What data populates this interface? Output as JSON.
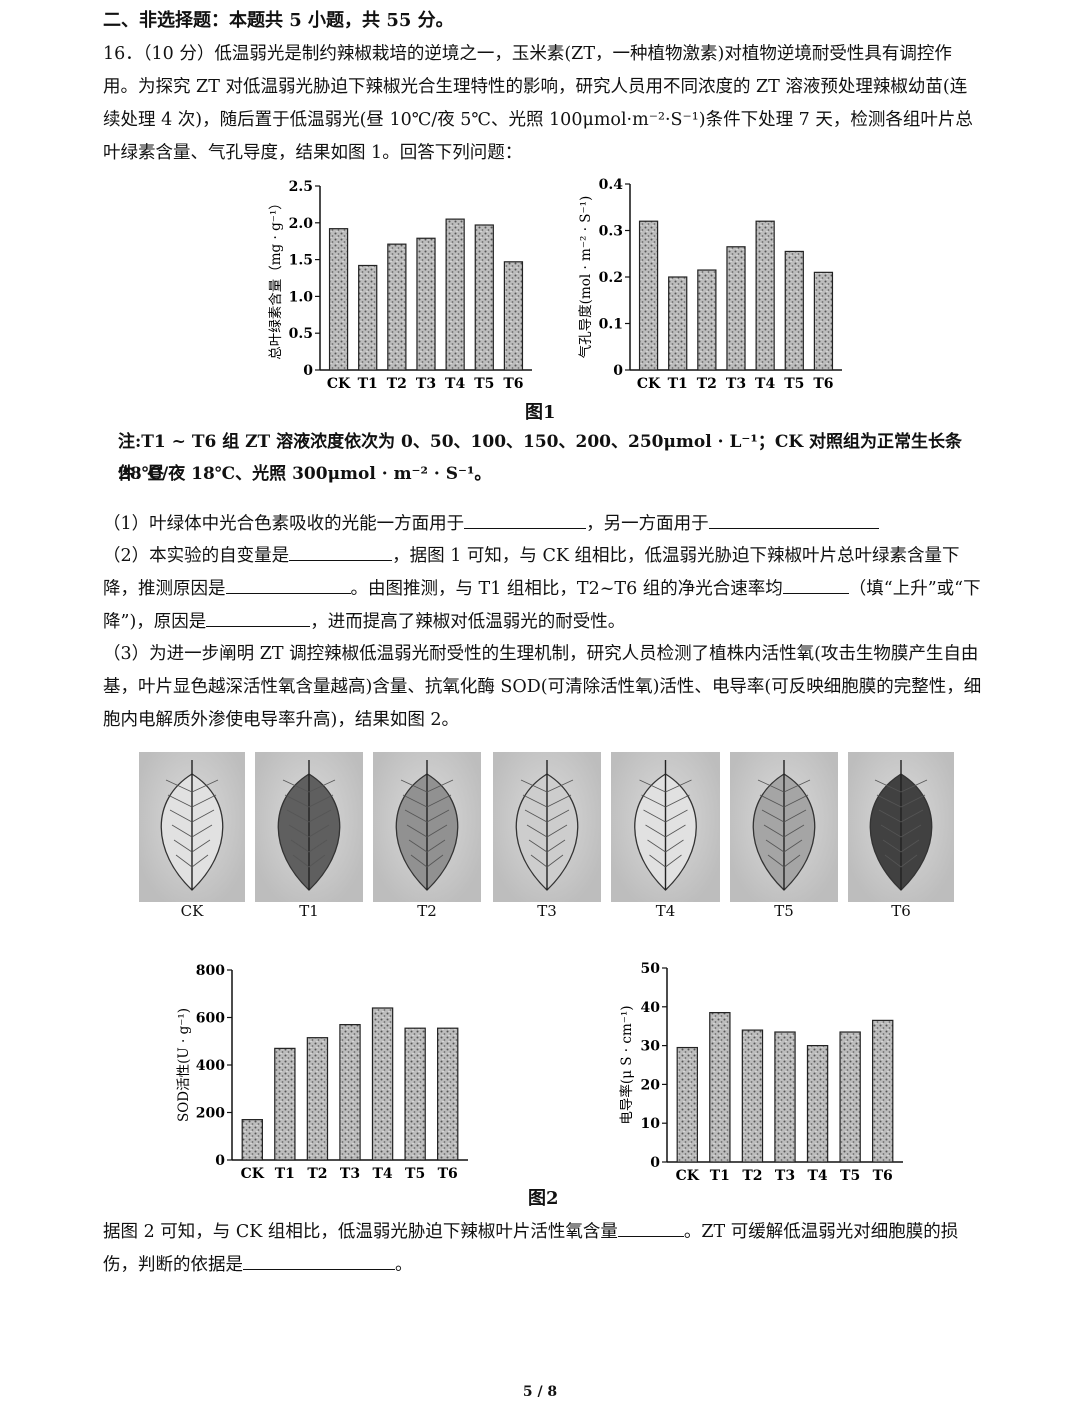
{
  "section_title": "二、非选择题：本题共 5 小题，共 55 分。",
  "question16": {
    "intro": "16．（10 分）低温弱光是制约辣椒栽培的逆境之一，玉米素(ZT，一种植物激素)对植物逆境耐受性具有调控作用。为探究 ZT 对低温弱光胁迫下辣椒光合生理特性的影响，研究人员用不同浓度的 ZT 溶液预处理辣椒幼苗(连续处理 4 次)，随后置于低温弱光(昼 10℃/夜 5℃、光照 100μmol·m⁻²·S⁻¹)条件下处理 7 天，检测各组叶片总叶绿素含量、气孔导度，结果如图 1。回答下列问题："
  },
  "figure1": {
    "caption": "图1",
    "note_line1": "注:T1 ~ T6 组 ZT 溶液浓度依次为 0、50、100、150、200、250μmol · L⁻¹；CK 对照组为正常生长条件: 昼",
    "note_line2": "28℃/夜 18℃、光照 300μmol · m⁻² · S⁻¹。"
  },
  "chart_data": [
    {
      "type": "bar",
      "categories": [
        "CK",
        "T1",
        "T2",
        "T3",
        "T4",
        "T5",
        "T6"
      ],
      "values": [
        1.92,
        1.42,
        1.71,
        1.79,
        2.05,
        1.97,
        1.47
      ],
      "ylabel": "总叶绿素含量（mg · g⁻¹）",
      "ylim": [
        0,
        2.5
      ],
      "yticks": [
        "0",
        "0.5",
        "1.0",
        "1.5",
        "2.0",
        "2.5"
      ]
    },
    {
      "type": "bar",
      "categories": [
        "CK",
        "T1",
        "T2",
        "T3",
        "T4",
        "T5",
        "T6"
      ],
      "values": [
        0.32,
        0.2,
        0.215,
        0.265,
        0.32,
        0.255,
        0.21
      ],
      "ylabel": "气孔导度(mol · m⁻² · S⁻¹)",
      "ylim": [
        0,
        0.4
      ],
      "yticks": [
        "0",
        "0.1",
        "0.2",
        "0.3",
        "0.4"
      ]
    },
    {
      "type": "bar",
      "categories": [
        "CK",
        "T1",
        "T2",
        "T3",
        "T4",
        "T5",
        "T6"
      ],
      "values": [
        170,
        470,
        515,
        570,
        640,
        555,
        555
      ],
      "ylabel": "SOD活性(U · g⁻¹)",
      "ylim": [
        0,
        800
      ],
      "yticks": [
        "0",
        "200",
        "400",
        "600",
        "800"
      ]
    },
    {
      "type": "bar",
      "categories": [
        "CK",
        "T1",
        "T2",
        "T3",
        "T4",
        "T5",
        "T6"
      ],
      "values": [
        29.5,
        38.5,
        34,
        33.5,
        30,
        33.5,
        36.5
      ],
      "ylabel": "电导率(μ S · cm⁻¹)",
      "ylim": [
        0,
        50
      ],
      "yticks": [
        "0",
        "10",
        "20",
        "30",
        "40",
        "50"
      ]
    }
  ],
  "q1": {
    "text_a": "（1）叶绿体中光合色素吸收的光能一方面用于",
    "text_b": "，另一方面用于"
  },
  "q2": {
    "text_a": "（2）本实验的自变量是",
    "text_b": "，据图 1 可知，与 CK 组相比，低温弱光胁迫下辣椒叶片总叶绿素含",
    "text_c": "量下降，推测原因是",
    "text_d": "。由图推测，与 T1 组相比，T2~T6 组的净光合速率均",
    "text_e": "（填",
    "text_f": "“上升”或“下降”)，原因是",
    "text_g": "，进而提高了辣椒对低温弱光的耐受性。"
  },
  "q3": {
    "text": "（3）为进一步阐明 ZT 调控辣椒低温弱光耐受性的生理机制，研究人员检测了植株内活性氧(攻击生物膜产生自由基，叶片显色越深活性氧含量越高)含量、抗氧化酶 SOD(可清除活性氧)活性、电导率(可反映细胞膜的完整性，细胞内电解质外渗使电导率升高)，结果如图 2。"
  },
  "figure2": {
    "caption": "图2",
    "leaf_labels": [
      "CK",
      "T1",
      "T2",
      "T3",
      "T4",
      "T5",
      "T6"
    ],
    "leaf_darkness": [
      0.05,
      0.7,
      0.45,
      0.15,
      0.05,
      0.35,
      0.85
    ]
  },
  "q3_followup": {
    "text_a": "据图 2 可知，与 CK 组相比，低温弱光胁迫下辣椒叶片活性氧含量",
    "text_b": "。ZT 可缓解低温弱光对细胞膜",
    "text_c": "的损伤，判断的依据是",
    "text_d": "。"
  },
  "page_number": "5 / 8"
}
